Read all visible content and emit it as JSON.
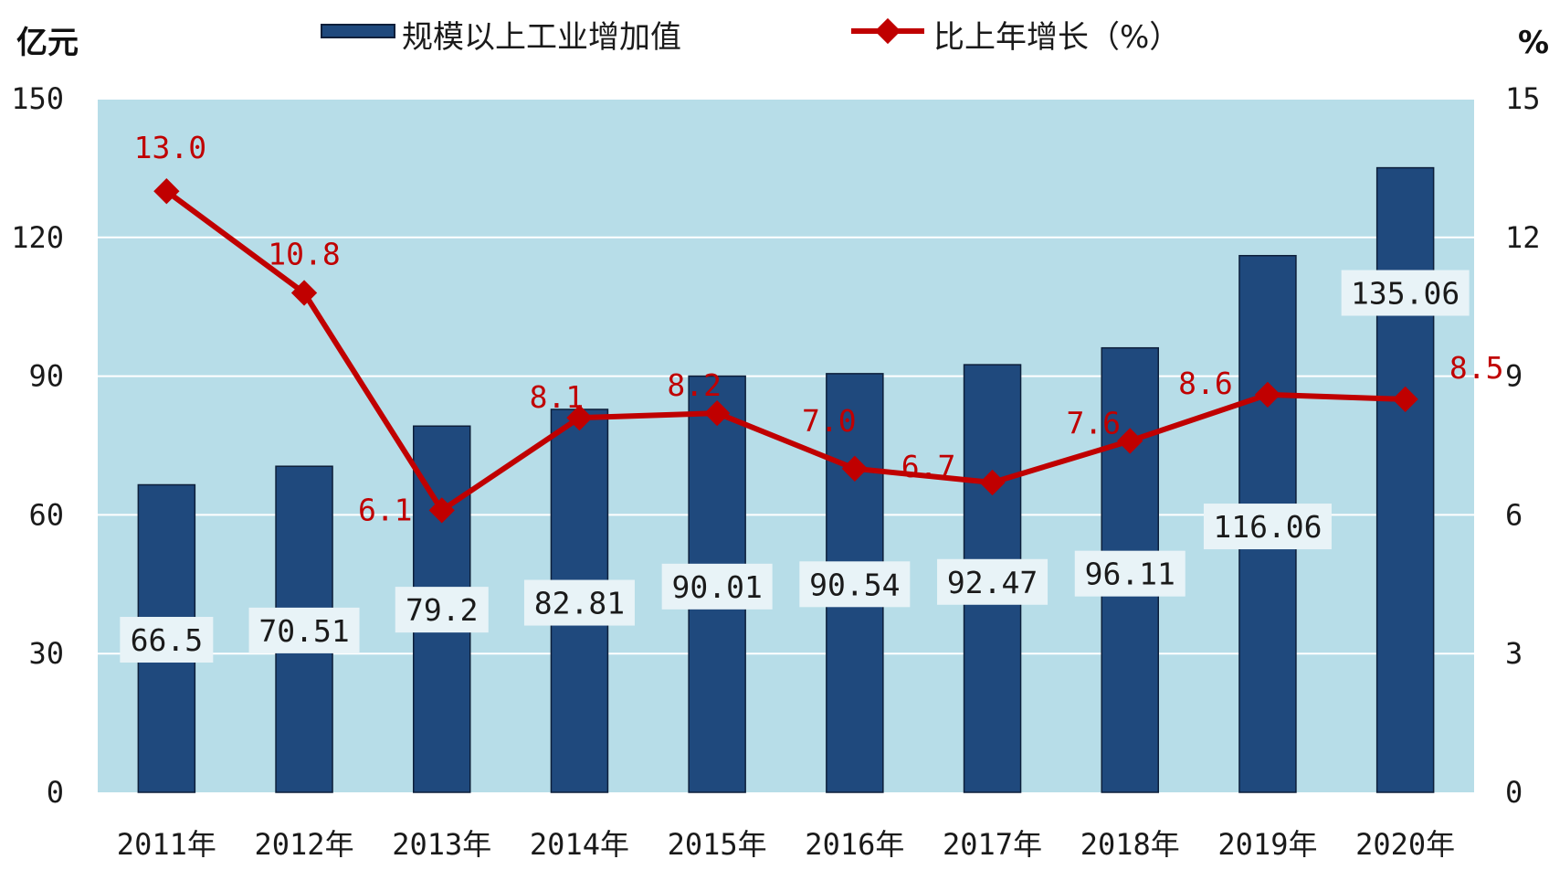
{
  "chart_data": {
    "type": "bar",
    "categories": [
      "2011年",
      "2012年",
      "2013年",
      "2014年",
      "2015年",
      "2016年",
      "2017年",
      "2018年",
      "2019年",
      "2020年"
    ],
    "series": [
      {
        "name": "规模以上工业增加值",
        "type": "bar",
        "axis": "left",
        "values": [
          66.5,
          70.51,
          79.2,
          82.81,
          90.01,
          90.54,
          92.47,
          96.11,
          116.06,
          135.06
        ],
        "labels": [
          "66.5",
          "70.51",
          "79.2",
          "82.81",
          "90.01",
          "90.54",
          "92.47",
          "96.11",
          "116.06",
          "135.06"
        ],
        "color": "#1f497d"
      },
      {
        "name": "比上年增长（%）",
        "type": "line",
        "axis": "right",
        "values": [
          13.0,
          10.8,
          6.1,
          8.1,
          8.2,
          7.0,
          6.7,
          7.6,
          8.6,
          8.5
        ],
        "labels": [
          "13.0",
          "10.8",
          "6.1",
          "8.1",
          "8.2",
          "7.0",
          "6.7",
          "7.6",
          "8.6",
          "8.5"
        ],
        "color": "#c00000"
      }
    ],
    "y_left": {
      "unit": "亿元",
      "ylim": [
        0,
        150
      ],
      "ticks": [
        "0",
        "30",
        "60",
        "90",
        "120",
        "150"
      ]
    },
    "y_right": {
      "unit": "%",
      "ylim": [
        0,
        15
      ],
      "ticks": [
        "0",
        "3",
        "6",
        "9",
        "12",
        "15"
      ]
    },
    "grid": true,
    "legend": "top",
    "plot_background": "#b7dde8",
    "gridline_color": "#ffffff",
    "label_box_color": "#e8f3f7"
  }
}
